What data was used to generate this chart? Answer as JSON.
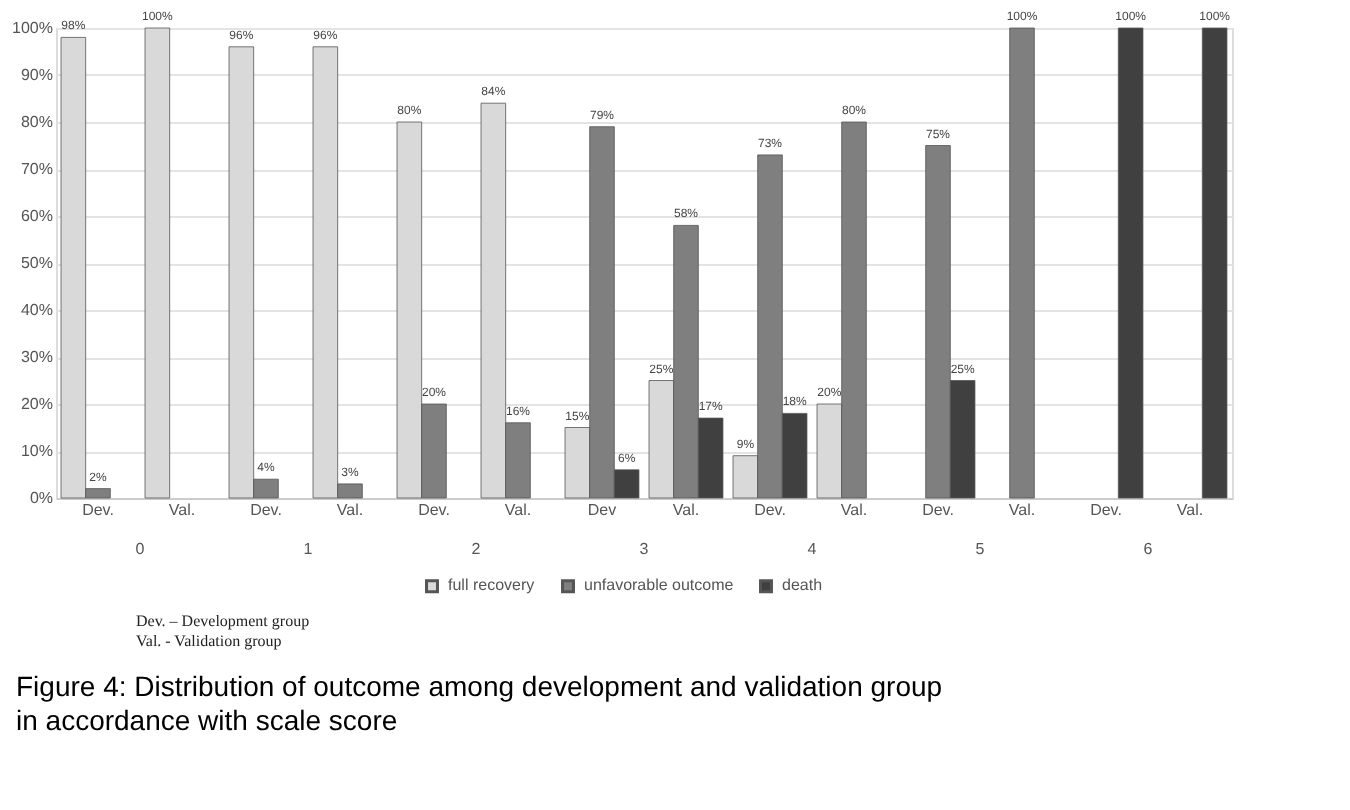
{
  "chart_data": {
    "type": "bar",
    "categories": [
      "Dev.",
      "Val.",
      "Dev.",
      "Val.",
      "Dev.",
      "Val.",
      "Dev",
      "Val.",
      "Dev.",
      "Val.",
      "Dev.",
      "Val.",
      "Dev.",
      "Val."
    ],
    "series": [
      {
        "name": "full recovery",
        "color": "#d9d9d9",
        "values": [
          98,
          100,
          96,
          96,
          80,
          84,
          15,
          25,
          9,
          20,
          null,
          null,
          null,
          null
        ],
        "value_labels": [
          "98%",
          "100%",
          "96%",
          "96%",
          "80%",
          "84%",
          "15%",
          "25%",
          "9%",
          "20%",
          null,
          null,
          null,
          null
        ]
      },
      {
        "name": "unfavorable outcome",
        "color": "#7f7f7f",
        "values": [
          2,
          null,
          4,
          3,
          20,
          16,
          79,
          58,
          73,
          80,
          75,
          100,
          null,
          null
        ],
        "value_labels": [
          "2%",
          null,
          "4%",
          "3%",
          "20%",
          "16%",
          "79%",
          "58%",
          "73%",
          "80%",
          "75%",
          "100%",
          null,
          null
        ]
      },
      {
        "name": "death",
        "color": "#404040",
        "values": [
          null,
          null,
          null,
          null,
          null,
          null,
          6,
          17,
          18,
          null,
          25,
          null,
          100,
          100
        ],
        "value_labels": [
          null,
          null,
          null,
          null,
          null,
          null,
          "6%",
          "17%",
          "18%",
          null,
          "25%",
          null,
          "100%",
          "100%"
        ]
      }
    ],
    "ylim": [
      0,
      100
    ],
    "yticks": [
      {
        "value": 0,
        "label": "0%"
      },
      {
        "value": 10,
        "label": "10%"
      },
      {
        "value": 20,
        "label": "20%"
      },
      {
        "value": 30,
        "label": "30%"
      },
      {
        "value": 40,
        "label": "40%"
      },
      {
        "value": 50,
        "label": "50%"
      },
      {
        "value": 60,
        "label": "60%"
      },
      {
        "value": 70,
        "label": "70%"
      },
      {
        "value": 80,
        "label": "80%"
      },
      {
        "value": 90,
        "label": "90%"
      },
      {
        "value": 100,
        "label": "100%"
      }
    ],
    "grid": "y",
    "legend": "bottom",
    "annotations": [
      "0",
      "1",
      "2",
      "3",
      "4",
      "5",
      "6",
      "Dev. – Development group",
      "Val. - Validation group",
      "Figure 4: Distribution of outcome among development and validation group in accordance with scale score"
    ]
  }
}
